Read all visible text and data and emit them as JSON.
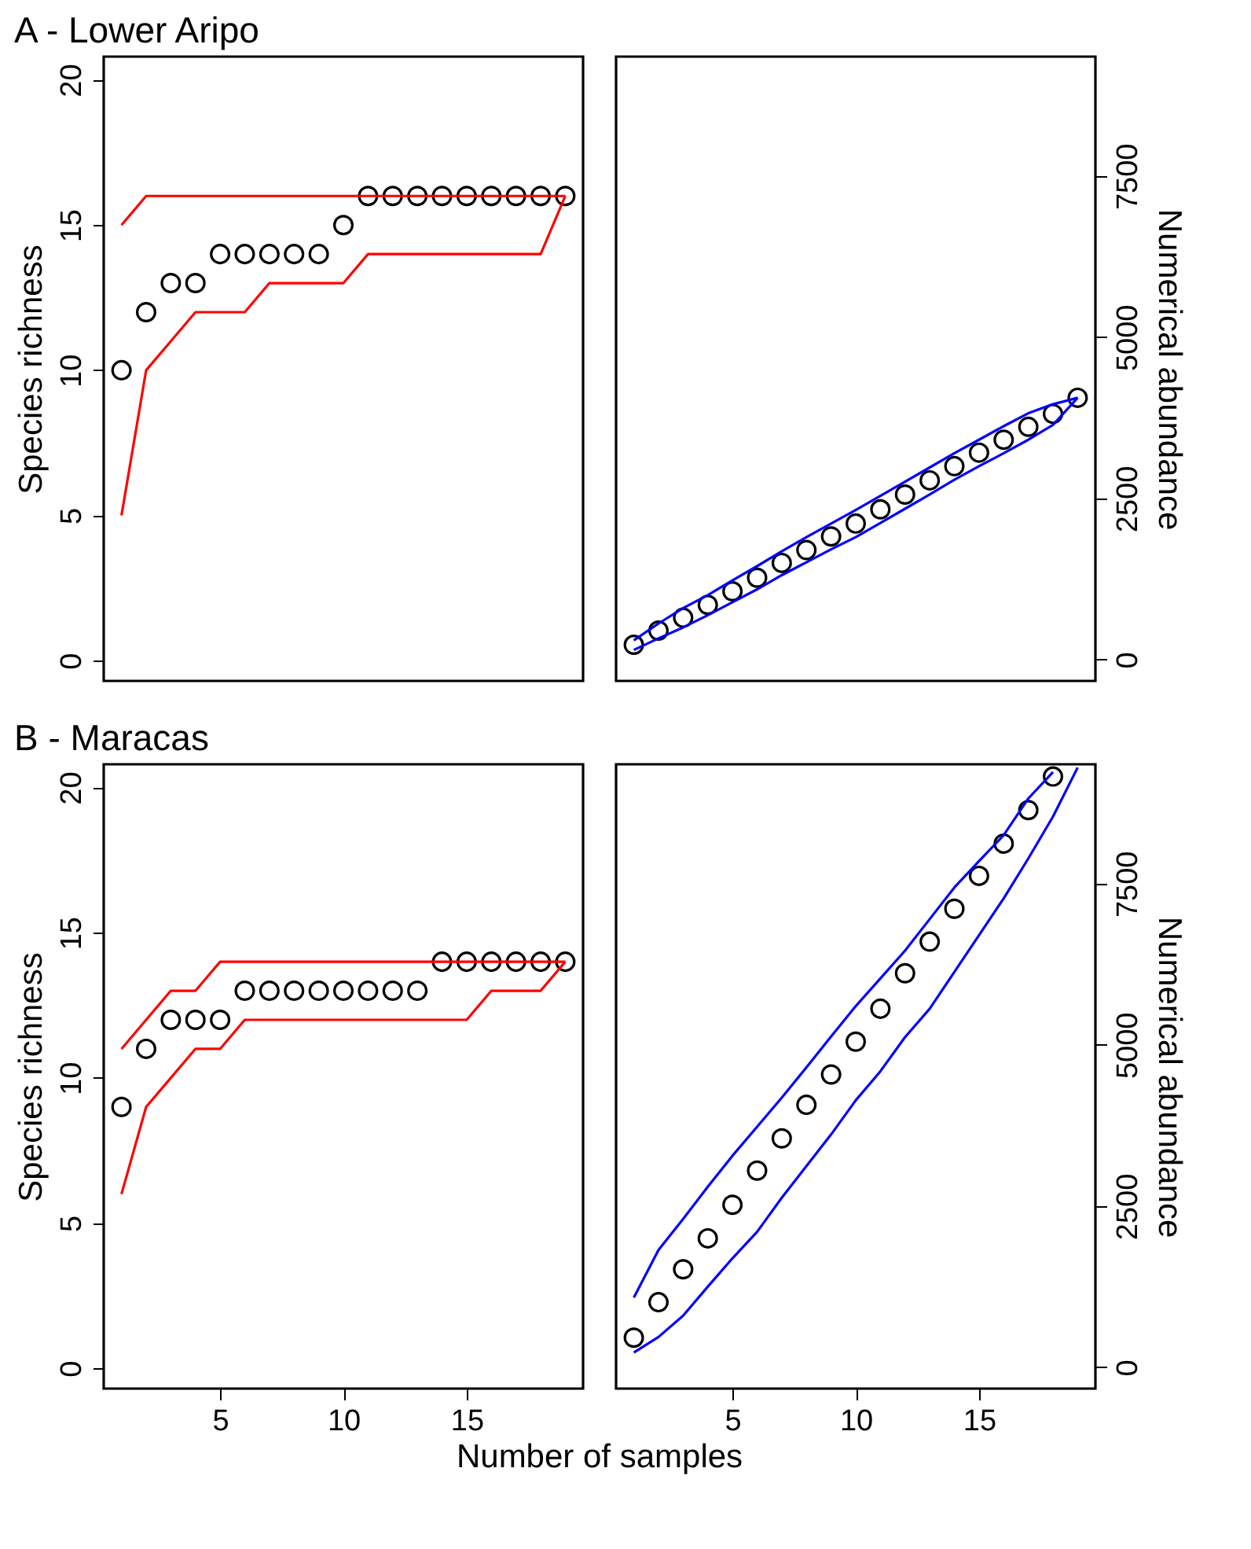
{
  "chart_data": [
    {
      "type": "line",
      "title": "A - Lower Aripo",
      "ylabel": "Species richness",
      "x": [
        1,
        2,
        3,
        4,
        5,
        6,
        7,
        8,
        9,
        10,
        11,
        12,
        13,
        14,
        15,
        16,
        17,
        18,
        19
      ],
      "xlim": [
        0.28,
        19.72
      ],
      "ylim": [
        -0.7,
        20.8
      ],
      "yticks": [
        0,
        5,
        10,
        15,
        20
      ],
      "tick_labels": "y",
      "grid": false,
      "series": [
        {
          "type": "scatter",
          "marker": "circle",
          "color": "#000000",
          "values": [
            10,
            12,
            13,
            13,
            14,
            14,
            14,
            14,
            14,
            15,
            16,
            16,
            16,
            16,
            16,
            16,
            16,
            16,
            16
          ]
        },
        {
          "color": "#ff0000",
          "values": [
            15,
            16,
            16,
            16,
            16,
            16,
            16,
            16,
            16,
            16,
            16,
            16,
            16,
            16,
            16,
            16,
            16,
            16,
            16
          ]
        },
        {
          "color": "#ff0000",
          "values": [
            5,
            10,
            11,
            12,
            12,
            12,
            13,
            13,
            13,
            13,
            14,
            14,
            14,
            14,
            14,
            14,
            14,
            14,
            16
          ]
        }
      ]
    },
    {
      "type": "line",
      "y2label": "Numerical abundance",
      "x": [
        1,
        2,
        3,
        4,
        5,
        6,
        7,
        8,
        9,
        10,
        11,
        12,
        13,
        14,
        15,
        16,
        17,
        18,
        19
      ],
      "xlim": [
        0.28,
        19.72
      ],
      "y2lim": [
        -330,
        9350
      ],
      "y2ticks": [
        0,
        2500,
        5000,
        7500
      ],
      "tick_labels": "y",
      "grid": false,
      "series": [
        {
          "type": "scatter",
          "marker": "circle",
          "axis": "y2",
          "color": "#000000",
          "values": [
            230,
            450,
            650,
            850,
            1060,
            1270,
            1500,
            1700,
            1910,
            2110,
            2330,
            2560,
            2780,
            3000,
            3210,
            3410,
            3610,
            3810,
            4060
          ]
        },
        {
          "axis": "y2",
          "color": "#0000ff",
          "values": [
            300,
            560,
            800,
            1000,
            1230,
            1450,
            1680,
            1900,
            2110,
            2320,
            2540,
            2760,
            2980,
            3200,
            3410,
            3620,
            3820,
            3960,
            4060
          ]
        },
        {
          "axis": "y2",
          "color": "#0000ff",
          "values": [
            150,
            330,
            500,
            690,
            890,
            1090,
            1310,
            1510,
            1710,
            1900,
            2120,
            2340,
            2560,
            2790,
            3000,
            3200,
            3410,
            3640,
            4060
          ]
        }
      ]
    },
    {
      "type": "line",
      "title": "B - Maracas",
      "ylabel": "Species richness",
      "xlabel": "Number of samples",
      "x": [
        1,
        2,
        3,
        4,
        5,
        6,
        7,
        8,
        9,
        10,
        11,
        12,
        13,
        14,
        15,
        16,
        17,
        18,
        19
      ],
      "xlim": [
        0.28,
        19.72
      ],
      "xticks": [
        5,
        10,
        15
      ],
      "ylim": [
        -0.7,
        20.8
      ],
      "yticks": [
        0,
        5,
        10,
        15,
        20
      ],
      "grid": false,
      "series": [
        {
          "type": "scatter",
          "marker": "circle",
          "color": "#000000",
          "values": [
            9,
            11,
            12,
            12,
            12,
            13,
            13,
            13,
            13,
            13,
            13,
            13,
            13,
            14,
            14,
            14,
            14,
            14,
            14
          ]
        },
        {
          "color": "#ff0000",
          "values": [
            11,
            12,
            13,
            13,
            14,
            14,
            14,
            14,
            14,
            14,
            14,
            14,
            14,
            14,
            14,
            14,
            14,
            14,
            14
          ]
        },
        {
          "color": "#ff0000",
          "values": [
            6,
            9,
            10,
            11,
            11,
            12,
            12,
            12,
            12,
            12,
            12,
            12,
            12,
            12,
            12,
            13,
            13,
            13,
            14
          ]
        }
      ]
    },
    {
      "type": "line",
      "y2label": "Numerical abundance",
      "x": [
        1,
        2,
        3,
        4,
        5,
        6,
        7,
        8,
        9,
        10,
        11,
        12,
        13,
        14,
        15,
        16,
        17,
        18,
        19
      ],
      "xlim": [
        0.28,
        19.72
      ],
      "xticks": [
        5,
        10,
        15
      ],
      "y2lim": [
        -330,
        9350
      ],
      "y2ticks": [
        0,
        2500,
        5000,
        7500
      ],
      "grid": false,
      "series": [
        {
          "type": "scatter",
          "marker": "circle",
          "axis": "y2",
          "color": "#000000",
          "values": [
            460,
            1010,
            1520,
            2000,
            2520,
            3050,
            3550,
            4070,
            4540,
            5050,
            5560,
            6110,
            6600,
            7110,
            7620,
            8120,
            8640,
            9160,
            null
          ]
        },
        {
          "axis": "y2",
          "color": "#0000ff",
          "values": [
            1080,
            1820,
            2300,
            2800,
            3280,
            3730,
            4180,
            4650,
            5130,
            5600,
            6030,
            6460,
            6950,
            7440,
            7850,
            8250,
            8820,
            9230,
            null
          ]
        },
        {
          "axis": "y2",
          "color": "#0000ff",
          "values": [
            230,
            470,
            800,
            1250,
            1690,
            2100,
            2630,
            3120,
            3610,
            4140,
            4590,
            5120,
            5560,
            6130,
            6700,
            7270,
            7890,
            8540,
            9300
          ]
        }
      ]
    }
  ]
}
